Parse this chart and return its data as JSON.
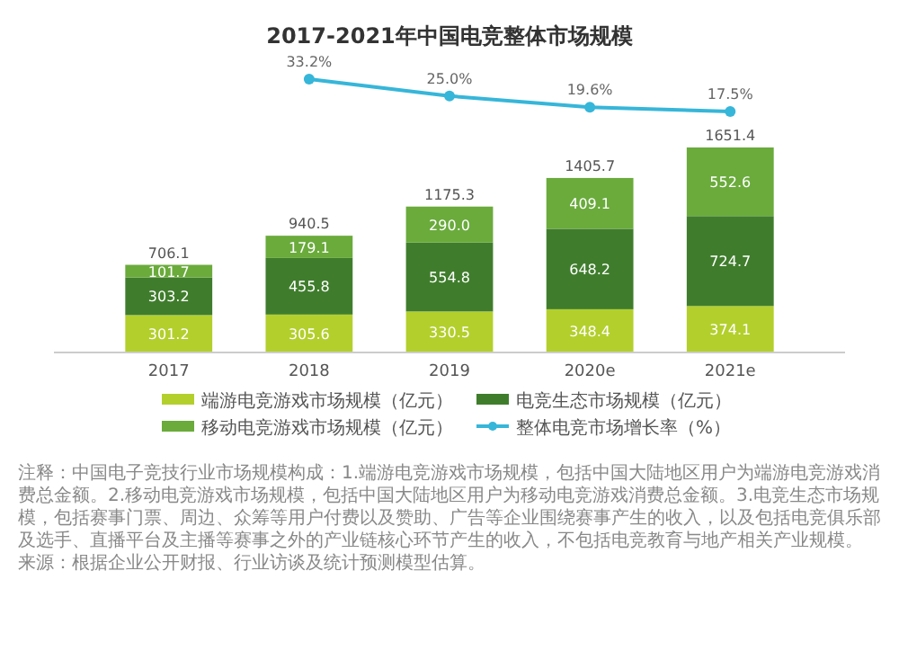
{
  "chart_data": [
    {
      "type": "line",
      "title": "2017-2021年中国电竞整体市场规模",
      "categories": [
        null,
        null,
        null,
        null,
        null
      ],
      "legend": "bottom",
      "marker": "circle",
      "series": [
        {
          "name": "整体电竞市场增长率（%）",
          "color": "#36b6d9",
          "values": [
            null,
            33.2,
            25.0,
            19.6,
            17.5
          ],
          "value_labels": [
            null,
            "33.2%",
            "25.0%",
            "19.6%",
            "17.5%"
          ]
        }
      ]
    },
    {
      "type": "bar",
      "categories": [
        "2017",
        "2018",
        "2019",
        "2020e",
        "2021e"
      ],
      "stacked": true,
      "legend": "bottom",
      "series": [
        {
          "name": "端游电竞游戏市场规模（亿元）",
          "color": "#b3cf2c",
          "values": [
            301.2,
            305.6,
            330.5,
            348.4,
            374.1
          ],
          "value_labels": [
            "301.2",
            "305.6",
            "330.5",
            "348.4",
            "374.1"
          ]
        },
        {
          "name": "电竞生态市场规模（亿元）",
          "color": "#3f7d2c",
          "values": [
            303.2,
            455.8,
            554.8,
            648.2,
            724.7
          ],
          "value_labels": [
            "303.2",
            "455.8",
            "554.8",
            "648.2",
            "724.7"
          ]
        },
        {
          "name": "移动电竞游戏市场规模（亿元）",
          "color": "#6aab3c",
          "values": [
            101.7,
            179.1,
            290.0,
            409.1,
            552.6
          ],
          "value_labels": [
            "101.7",
            "179.1",
            "290.0",
            "409.1",
            "552.6"
          ]
        }
      ],
      "totals": [
        "706.1",
        "940.5",
        "1175.3",
        "1405.7",
        "1651.4"
      ],
      "annotations": [
        "注释：中国电子竞技行业市场规模构成：1.端游电竞游戏市场规模，包括中国大陆地区用户为端游电竞游戏消费总金额。2.移动电竞游戏市场规模，包括中国大陆地区用户为移动电竞游戏消费总金额。3.电竞生态市场规模，包括赛事门票、周边、众筹等用户付费以及赞助、广告等企业围绕赛事产生的收入，以及包括电竞俱乐部及选手、直播平台及主播等赛事之外的产业链核心环节产生的收入，不包括电竞教育与地产相关产业规模。",
        "来源：根据企业公开财报、行业访谈及统计预测模型估算。"
      ]
    }
  ]
}
